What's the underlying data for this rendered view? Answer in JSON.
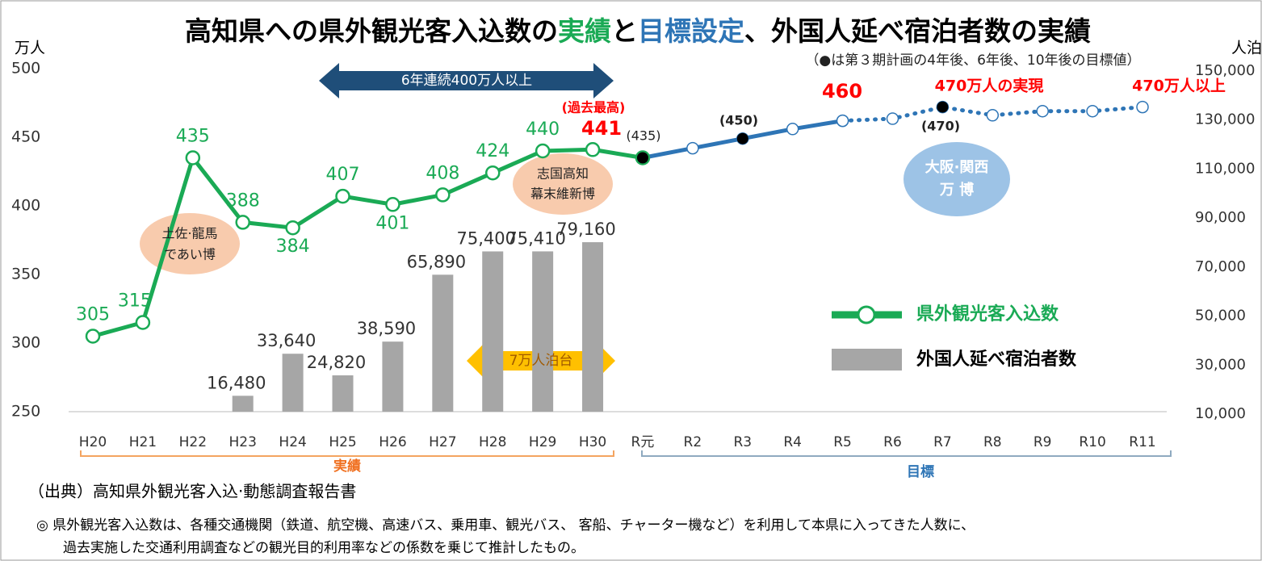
{
  "chart_data": {
    "type": "combo",
    "title": [
      "高知県への県外観光客入込数の",
      "実績",
      "と",
      "目標設定",
      "、外国人延べ宿泊者数の実績"
    ],
    "categories": [
      "H20",
      "H21",
      "H22",
      "H23",
      "H24",
      "H25",
      "H26",
      "H27",
      "H28",
      "H29",
      "H30",
      "R元",
      "R2",
      "R3",
      "R4",
      "R5",
      "R6",
      "R7",
      "R8",
      "R9",
      "R10",
      "R11"
    ],
    "series": [
      {
        "name": "県外観光客入込数",
        "type": "line",
        "color": "#1aaa55",
        "values": [
          305,
          315,
          435,
          388,
          384,
          407,
          401,
          408,
          424,
          440,
          441,
          435,
          null,
          null,
          null,
          null,
          null,
          null,
          null,
          null,
          null,
          null
        ],
        "value_labels": [
          "305",
          "315",
          "435",
          "388",
          "384",
          "407",
          "401",
          "408",
          "424",
          "440",
          null,
          null,
          null,
          null,
          null,
          null,
          null,
          null,
          null,
          null,
          null,
          null
        ]
      },
      {
        "type": "line",
        "color": "#2e75b6",
        "values": [
          null,
          null,
          null,
          null,
          null,
          null,
          null,
          null,
          null,
          null,
          null,
          435,
          442,
          449,
          456,
          462,
          null,
          null,
          null,
          null,
          null,
          null
        ]
      },
      {
        "type": "line",
        "color": "#2e75b6",
        "dash": true,
        "values": [
          null,
          null,
          null,
          null,
          null,
          null,
          null,
          null,
          null,
          null,
          null,
          null,
          null,
          null,
          null,
          462,
          463.5,
          472,
          466,
          469,
          469,
          472
        ]
      },
      {
        "type": "scatter",
        "color": "#000000",
        "values": [
          null,
          null,
          null,
          null,
          null,
          null,
          null,
          null,
          null,
          null,
          null,
          435,
          null,
          449,
          null,
          null,
          null,
          472,
          null,
          null,
          null,
          null
        ]
      },
      {
        "name": "外国人延べ宿泊者数",
        "type": "bar",
        "axis": "y2",
        "color": "#a6a6a6",
        "values": [
          null,
          null,
          null,
          16480,
          33640,
          24820,
          38590,
          65890,
          75400,
          75410,
          79160,
          null,
          null,
          null,
          null,
          null,
          null,
          null,
          null,
          null,
          null,
          null
        ],
        "value_labels": [
          null,
          null,
          null,
          "16,480",
          "33,640",
          "24,820",
          "38,590",
          "65,890",
          "75,400",
          "75,410",
          "79,160",
          null,
          null,
          null,
          null,
          null,
          null,
          null,
          null,
          null,
          null,
          null
        ]
      }
    ],
    "ylabel": "万人",
    "y2label": "人泊",
    "ylim": [
      250,
      500
    ],
    "yticks": [
      250,
      300,
      350,
      400,
      450,
      500
    ],
    "y2lim": [
      10000,
      150000
    ],
    "y2ticks": [
      {
        "value": 10000,
        "label": "10,000"
      },
      {
        "value": 30000,
        "label": "30,000"
      },
      {
        "value": 50000,
        "label": "50,000"
      },
      {
        "value": 70000,
        "label": "70,000"
      },
      {
        "value": 90000,
        "label": "90,000"
      },
      {
        "value": 110000,
        "label": "110,000"
      },
      {
        "value": 130000,
        "label": "130,000"
      },
      {
        "value": 150000,
        "label": "150,000"
      }
    ],
    "grid": false,
    "legend": "right",
    "annotations": [
      "(過去最高)",
      "441",
      "(435)",
      "(450)",
      "460",
      "(470)",
      "470万人の実現",
      "470万人以上",
      "6年連続400万人以上",
      "7万人泊台",
      "土佐·龍馬",
      "であい博",
      "志国高知",
      "幕末維新博",
      "大阪·関西",
      "万 博",
      "（●は第３期計画の4年後、6年後、10年後の目標値）",
      "実績",
      "目標"
    ]
  },
  "source": "（出典）高知県外観光客入込·動態調査報告書",
  "note": [
    "◎  県外観光客入込数は、各種交通機関（鉄道、航空機、高速バス、乗用車、観光バス、 客船、チャーター機など）を利用して本県に入ってきた人数に、",
    "過去実施した交通利用調査などの観光目的利用率などの係数を乗じて推計したもの。"
  ]
}
